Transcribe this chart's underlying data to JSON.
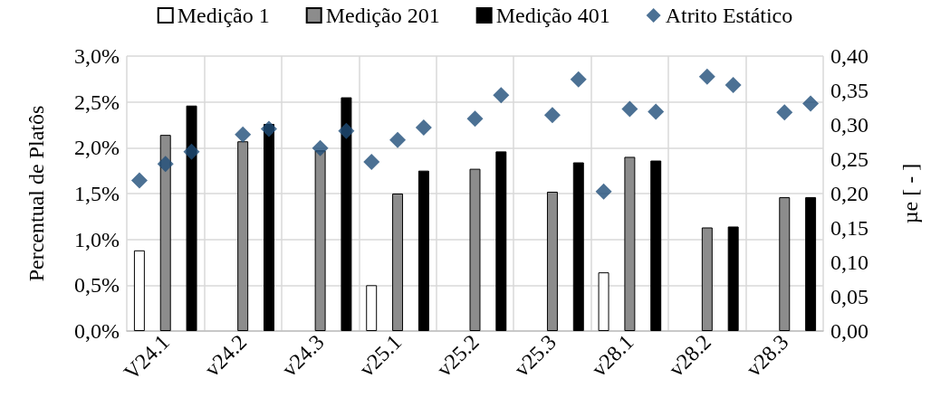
{
  "chart_data": {
    "type": "bar",
    "categories": [
      "V24.1",
      "v24.2",
      "v24.3",
      "v25.1",
      "v25.2",
      "v25.3",
      "v28.1",
      "v28.2",
      "v28.3"
    ],
    "ylabel": "Percentual de Platôs",
    "y2label": "µe [ - ]",
    "ylim": [
      0,
      3
    ],
    "yticks": [
      {
        "value": 0,
        "label": "0,0%"
      },
      {
        "value": 0.5,
        "label": "0,5%"
      },
      {
        "value": 1,
        "label": "1,0%"
      },
      {
        "value": 1.5,
        "label": "1,5%"
      },
      {
        "value": 2,
        "label": "2,0%"
      },
      {
        "value": 2.5,
        "label": "2,5%"
      },
      {
        "value": 3,
        "label": "3,0%"
      }
    ],
    "y2lim": [
      0,
      0.4
    ],
    "y2ticks": [
      {
        "value": 0,
        "label": "0,00"
      },
      {
        "value": 0.05,
        "label": "0,05"
      },
      {
        "value": 0.1,
        "label": "0,10"
      },
      {
        "value": 0.15,
        "label": "0,15"
      },
      {
        "value": 0.2,
        "label": "0,20"
      },
      {
        "value": 0.25,
        "label": "0,25"
      },
      {
        "value": 0.3,
        "label": "0,30"
      },
      {
        "value": 0.35,
        "label": "0,35"
      },
      {
        "value": 0.4,
        "label": "0,40"
      }
    ],
    "grid": true,
    "legend": "top",
    "series": [
      {
        "name": "Medição 1",
        "color": "#ffffff",
        "values": [
          0.88,
          null,
          null,
          0.5,
          null,
          null,
          0.64,
          null,
          null
        ]
      },
      {
        "name": "Medição 201",
        "color": "#8c8c8c",
        "values": [
          2.14,
          2.07,
          1.97,
          1.5,
          1.77,
          1.52,
          1.9,
          1.13,
          1.46
        ]
      },
      {
        "name": "Medição 401",
        "color": "#000000",
        "values": [
          2.46,
          2.26,
          2.55,
          1.75,
          1.96,
          1.84,
          1.86,
          1.14,
          1.46
        ]
      },
      {
        "name": "Atrito Estático",
        "type": "scatter",
        "axis": "y2",
        "marker": "diamond",
        "color": "#1f4e79",
        "x": [
          "V24.1",
          "V24.1",
          "V24.1",
          "v24.2",
          "v24.2",
          "v24.2",
          "v24.3",
          "v24.3",
          "v24.3",
          "v25.1",
          "v25.1",
          "v25.1",
          "v25.2",
          "v25.2",
          "v25.2",
          "v25.3",
          "v25.3",
          "v25.3",
          "v28.1",
          "v28.1",
          "v28.1",
          "v28.2",
          "v28.2",
          "v28.2",
          "v28.3",
          "v28.3",
          "v28.3"
        ],
        "values": [
          0.219,
          0.243,
          0.261,
          null,
          0.286,
          0.294,
          null,
          0.266,
          0.291,
          0.246,
          0.278,
          0.296,
          null,
          0.309,
          0.343,
          null,
          0.314,
          0.366,
          0.203,
          0.323,
          0.319,
          null,
          0.37,
          0.358,
          null,
          0.318,
          0.331
        ]
      }
    ]
  }
}
